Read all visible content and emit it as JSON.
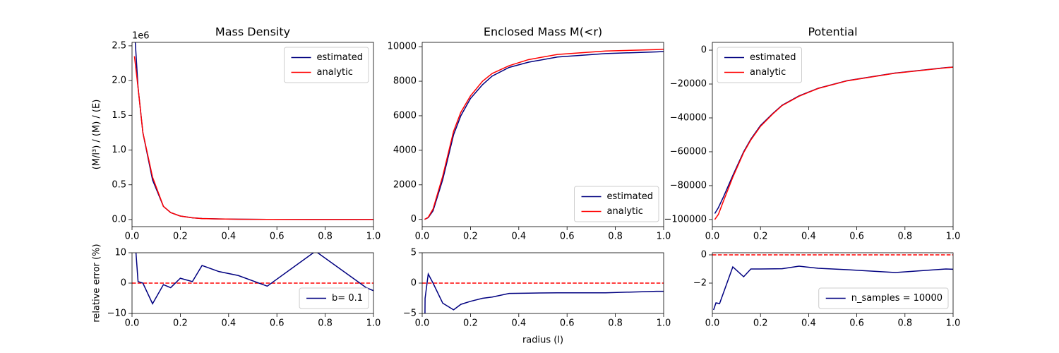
{
  "chart_data": [
    {
      "type": "line",
      "title": "Mass Density",
      "ylabel": "(M/l³) / (M) / (E)",
      "offset_label": "1e6",
      "x": [
        0.01,
        0.025,
        0.045,
        0.085,
        0.13,
        0.16,
        0.2,
        0.25,
        0.29,
        0.36,
        0.44,
        0.56,
        0.76,
        0.97,
        1.0
      ],
      "series": [
        {
          "name": "estimated",
          "color": "#000080",
          "values": [
            2.75,
            1.9,
            1.25,
            0.57,
            0.19,
            0.1,
            0.05,
            0.025,
            0.015,
            0.008,
            0.005,
            0.002,
            0.001,
            0.0005,
            0.0004
          ]
        },
        {
          "name": "analytic",
          "color": "#ff0000",
          "values": [
            2.35,
            1.9,
            1.25,
            0.61,
            0.19,
            0.1,
            0.05,
            0.025,
            0.014,
            0.008,
            0.005,
            0.002,
            0.001,
            0.0005,
            0.0004
          ]
        }
      ],
      "xlim": [
        0,
        1
      ],
      "xticks": [
        {
          "value": 0,
          "label": "0.0"
        },
        0.2,
        0.4,
        0.6,
        0.8,
        {
          "value": 1,
          "label": "1.0"
        }
      ],
      "ylim": [
        -0.102,
        2.55
      ],
      "yticks": [
        {
          "value": 0,
          "label": "0.0"
        },
        0.5,
        {
          "value": 1,
          "label": "1.0"
        },
        1.5,
        {
          "value": 2,
          "label": "2.0"
        },
        2.5
      ],
      "legend": "upper right"
    },
    {
      "type": "line",
      "title": "Enclosed Mass M(<r)",
      "x": [
        0.01,
        0.025,
        0.045,
        0.085,
        0.13,
        0.16,
        0.2,
        0.25,
        0.29,
        0.36,
        0.44,
        0.56,
        0.76,
        0.97,
        1.0
      ],
      "series": [
        {
          "name": "estimated",
          "color": "#000080",
          "values": [
            0,
            100,
            500,
            2300,
            4900,
            6000,
            7000,
            7800,
            8300,
            8800,
            9100,
            9400,
            9600,
            9700,
            9720
          ]
        },
        {
          "name": "analytic",
          "color": "#ff0000",
          "values": [
            0,
            120,
            600,
            2500,
            5100,
            6200,
            7150,
            8000,
            8450,
            8900,
            9250,
            9550,
            9750,
            9830,
            9850
          ]
        }
      ],
      "xlim": [
        0,
        1
      ],
      "xticks": [
        {
          "value": 0,
          "label": "0.0"
        },
        0.2,
        0.4,
        0.6,
        0.8,
        {
          "value": 1,
          "label": "1.0"
        }
      ],
      "ylim": [
        -420,
        10250
      ],
      "yticks": [
        0,
        2000,
        4000,
        6000,
        8000,
        10000
      ],
      "legend": "lower right"
    },
    {
      "type": "line",
      "title": "Potential",
      "x": [
        0.01,
        0.025,
        0.045,
        0.085,
        0.13,
        0.16,
        0.2,
        0.25,
        0.29,
        0.36,
        0.44,
        0.56,
        0.76,
        0.97,
        1.0
      ],
      "series": [
        {
          "name": "estimated",
          "color": "#000080",
          "values": [
            -96500,
            -93000,
            -87000,
            -74000,
            -60000,
            -52500,
            -44500,
            -37500,
            -32500,
            -27000,
            -22500,
            -18000,
            -13500,
            -10300,
            -10000
          ]
        },
        {
          "name": "analytic",
          "color": "#ff0000",
          "values": [
            -100000,
            -97000,
            -89500,
            -75000,
            -60500,
            -53000,
            -45000,
            -37800,
            -32700,
            -27200,
            -22600,
            -18100,
            -13600,
            -10400,
            -10050
          ]
        }
      ],
      "xlim": [
        0,
        1
      ],
      "xticks": [
        {
          "value": 0,
          "label": "0.0"
        },
        0.2,
        0.4,
        0.6,
        0.8,
        {
          "value": 1,
          "label": "1.0"
        }
      ],
      "ylim": [
        -104200,
        4600
      ],
      "yticks": [
        {
          "value": -100000,
          "label": "−100000"
        },
        {
          "value": -80000,
          "label": "−80000"
        },
        {
          "value": -60000,
          "label": "−60000"
        },
        {
          "value": -40000,
          "label": "−40000"
        },
        {
          "value": -20000,
          "label": "−20000"
        },
        0
      ],
      "legend": "upper left"
    },
    {
      "type": "line",
      "ylabel": "relative error (%)",
      "x": [
        0.01,
        0.025,
        0.045,
        0.085,
        0.13,
        0.16,
        0.2,
        0.25,
        0.29,
        0.36,
        0.44,
        0.56,
        0.76,
        0.97,
        1.0
      ],
      "series": [
        {
          "name": "b= 0.1",
          "color": "#000080",
          "values": [
            17,
            0.5,
            0,
            -6.8,
            -0.5,
            -1.5,
            1.6,
            0.5,
            5.8,
            3.8,
            2.5,
            -1,
            10.5,
            -1.5,
            -2.5
          ]
        }
      ],
      "reference_line": {
        "value": 0,
        "color": "#ff0000"
      },
      "xlim": [
        0,
        1
      ],
      "xticks": [
        {
          "value": 0,
          "label": "0.0"
        },
        0.2,
        0.4,
        0.6,
        0.8,
        {
          "value": 1,
          "label": "1.0"
        }
      ],
      "ylim": [
        -10,
        10
      ],
      "yticks": [
        {
          "value": -10,
          "label": "−10"
        },
        0,
        10
      ],
      "legend": "lower right"
    },
    {
      "type": "line",
      "xlabel": "radius (l)",
      "x": [
        0.01,
        0.012,
        0.025,
        0.045,
        0.085,
        0.13,
        0.16,
        0.2,
        0.25,
        0.29,
        0.36,
        0.44,
        0.56,
        0.76,
        0.97,
        1.0
      ],
      "series": [
        {
          "name": "b= 0.1",
          "color": "#000080",
          "values": [
            -12,
            -2.5,
            1.5,
            0,
            -3.3,
            -4.4,
            -3.5,
            -3,
            -2.5,
            -2.3,
            -1.7,
            -1.65,
            -1.6,
            -1.6,
            -1.35,
            -1.35
          ]
        }
      ],
      "reference_line": {
        "value": 0,
        "color": "#ff0000"
      },
      "xlim": [
        0,
        1
      ],
      "xticks": [
        {
          "value": 0,
          "label": "0.0"
        },
        0.2,
        0.4,
        0.6,
        0.8,
        {
          "value": 1,
          "label": "1.0"
        }
      ],
      "ylim": [
        -5,
        5
      ],
      "yticks": [
        {
          "value": -5,
          "label": "−5"
        },
        0,
        5
      ]
    },
    {
      "type": "line",
      "x": [
        0.005,
        0.015,
        0.03,
        0.085,
        0.13,
        0.16,
        0.2,
        0.29,
        0.36,
        0.44,
        0.56,
        0.76,
        0.97,
        1.0
      ],
      "series": [
        {
          "name": "n_samples = 10000",
          "color": "#000080",
          "values": [
            -3.9,
            -3.4,
            -3.45,
            -0.85,
            -1.55,
            -1.0,
            -1.0,
            -0.98,
            -0.8,
            -0.95,
            -1.05,
            -1.25,
            -1.0,
            -1.02
          ]
        }
      ],
      "reference_line": {
        "value": 0,
        "color": "#ff0000"
      },
      "xlim": [
        0,
        1
      ],
      "xticks": [
        {
          "value": 0,
          "label": "0.0"
        },
        0.2,
        0.4,
        0.6,
        0.8,
        {
          "value": 1,
          "label": "1.0"
        }
      ],
      "ylim": [
        -4.15,
        0.15
      ],
      "yticks": [
        {
          "value": -2,
          "label": "−2"
        },
        0
      ],
      "legend": "lower right"
    }
  ]
}
